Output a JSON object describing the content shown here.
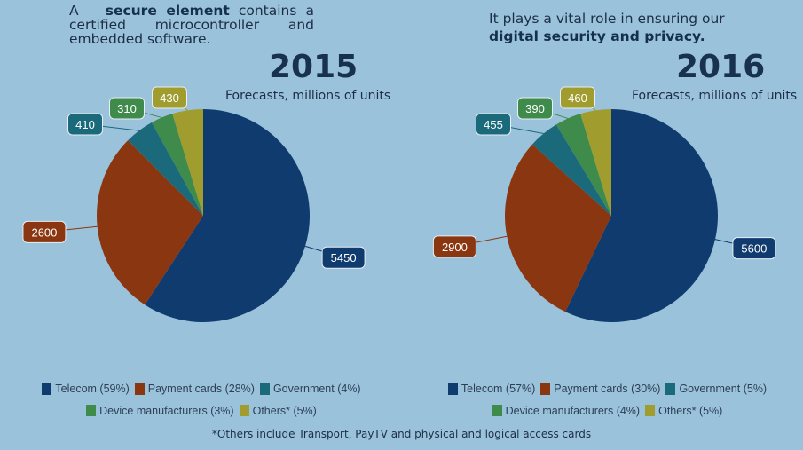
{
  "intro_left": {
    "prefix": "A",
    "bold": "secure element",
    "rest": "contains a certified microcontroller and embedded software."
  },
  "intro_right": {
    "line1": "It plays a vital role in ensuring our",
    "bold": "digital security and privacy."
  },
  "colors": {
    "Telecom": "#0f3b6f",
    "Payment cards": "#8a3610",
    "Government": "#1b6a7c",
    "Device manufacturers": "#3f8b4c",
    "Others*": "#a09c2e"
  },
  "chart_data": [
    {
      "type": "pie",
      "title": "2015",
      "subtitle": "Forecasts, millions of units",
      "categories": [
        "Telecom",
        "Payment cards",
        "Government",
        "Device manufacturers",
        "Others*"
      ],
      "values": [
        5450,
        2600,
        410,
        310,
        430
      ],
      "legend": [
        "Telecom (59%)",
        "Payment cards (28%)",
        "Government (4%)",
        "Device manufacturers (3%)",
        "Others* (5%)"
      ],
      "legend_position": "bottom"
    },
    {
      "type": "pie",
      "title": "2016",
      "subtitle": "Forecasts, millions of units",
      "categories": [
        "Telecom",
        "Payment cards",
        "Government",
        "Device manufacturers",
        "Others*"
      ],
      "values": [
        5600,
        2900,
        455,
        390,
        460
      ],
      "legend": [
        "Telecom (57%)",
        "Payment cards (30%)",
        "Government (5%)",
        "Device manufacturers (4%)",
        "Others* (5%)"
      ],
      "legend_position": "bottom"
    }
  ],
  "footnote": "*Others include Transport, PayTV and physical and logical access cards"
}
